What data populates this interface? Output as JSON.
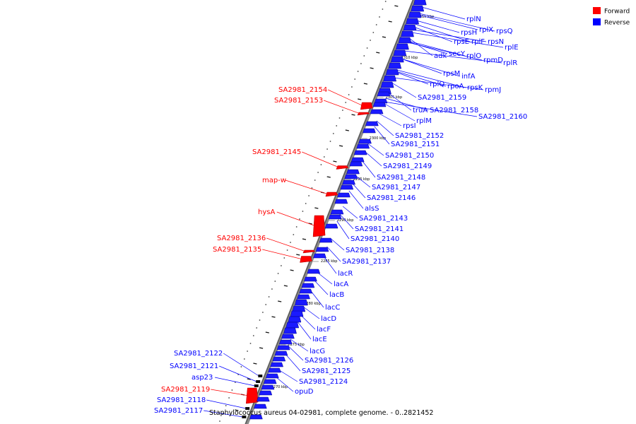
{
  "caption": "Staphylococcus aureus 04-02981, complete genome. - 0..2821452",
  "legend": [
    {
      "label": "Forward",
      "color": "#ff0000"
    },
    {
      "label": "Reverse",
      "color": "#0000ff"
    }
  ],
  "ticks": [
    "2270 kbp",
    "2275 kbp",
    "2280 kbp",
    "2285 kbp",
    "2290 kbp",
    "2295 kbp",
    "2300 kbp",
    "2305 kbp",
    "2310 kbp",
    "2315 kbp"
  ],
  "forward_genes": [
    "SA2981_2154",
    "SA2981_2153",
    "SA2981_2145",
    "map-w",
    "hysA",
    "SA2981_2136",
    "SA2981_2135",
    "SA2981_2119"
  ],
  "reverse_genes_left": [
    "SA2981_2122",
    "SA2981_2121",
    "asp23",
    "SA2981_2118",
    "SA2981_2117"
  ],
  "reverse_genes": [
    "rplN",
    "rplX",
    "rpsQ",
    "rpsH",
    "rpsE",
    "rplF",
    "rpsN",
    "rplE",
    "adk",
    "secY",
    "rplO",
    "rpmD",
    "rplR",
    "rpsM",
    "infA",
    "rplQ",
    "rpoA",
    "rpsK",
    "rpmJ",
    "SA2981_2159",
    "truA",
    "SA2981_2158",
    "SA2981_2160",
    "rplM",
    "rpsI",
    "SA2981_2152",
    "SA2981_2151",
    "SA2981_2150",
    "SA2981_2149",
    "SA2981_2148",
    "SA2981_2147",
    "SA2981_2146",
    "alsS",
    "SA2981_2143",
    "SA2981_2141",
    "SA2981_2140",
    "SA2981_2138",
    "SA2981_2137",
    "lacR",
    "lacA",
    "lacB",
    "lacC",
    "lacD",
    "lacF",
    "lacE",
    "lacG",
    "SA2981_2126",
    "SA2981_2125",
    "SA2981_2124",
    "opuD"
  ]
}
